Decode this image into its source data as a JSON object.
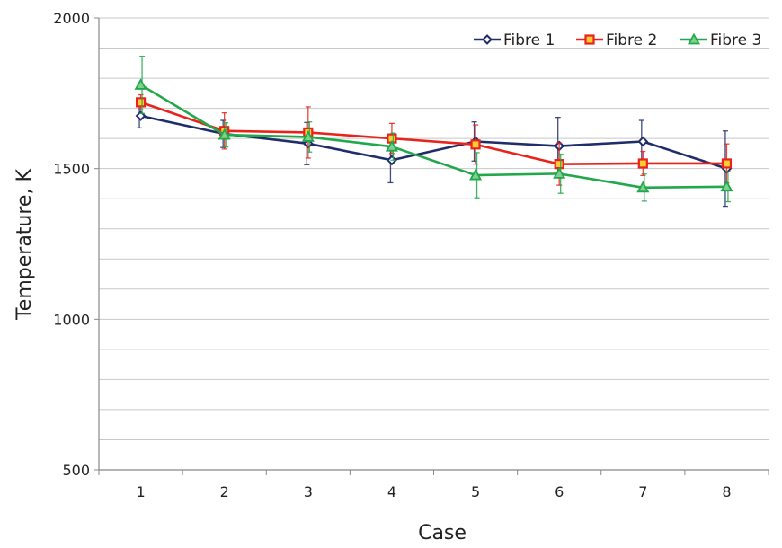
{
  "chart_data": {
    "type": "line",
    "xlabel": "Case",
    "ylabel": "Temperature, K",
    "categories": [
      "1",
      "2",
      "3",
      "4",
      "5",
      "6",
      "7",
      "8"
    ],
    "ylim": [
      500,
      2000
    ],
    "yticks": [
      "500",
      "1000",
      "1500",
      "2000"
    ],
    "grid": "horizontal, every 100 K",
    "legend_position": "top-right",
    "error_bars": true,
    "series": [
      {
        "name": "Fibre 1",
        "color": "#1f2d6b",
        "marker": "diamond",
        "values": [
          1675,
          1615,
          1583,
          1528,
          1590,
          1575,
          1590,
          1500
        ],
        "errors": [
          40,
          45,
          70,
          75,
          65,
          95,
          70,
          125
        ]
      },
      {
        "name": "Fibre 2",
        "color": "#e8231b",
        "marker": "square",
        "values": [
          1720,
          1625,
          1620,
          1600,
          1580,
          1515,
          1517,
          1517
        ],
        "errors": [
          25,
          60,
          85,
          50,
          65,
          70,
          40,
          65
        ]
      },
      {
        "name": "Fibre 3",
        "color": "#21a84a",
        "marker": "triangle",
        "values": [
          1778,
          1612,
          1605,
          1573,
          1478,
          1483,
          1437,
          1440
        ],
        "errors": [
          95,
          40,
          50,
          45,
          75,
          65,
          45,
          50
        ]
      }
    ]
  }
}
